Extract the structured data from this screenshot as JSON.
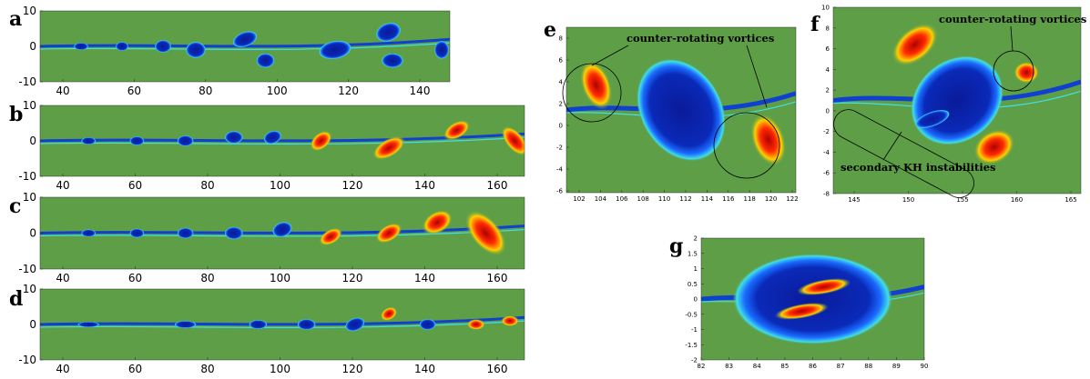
{
  "panels": [
    {
      "label": "a",
      "xticks": [
        40,
        60,
        80,
        100,
        120,
        140
      ],
      "yticks": [
        10,
        0,
        -10
      ]
    },
    {
      "label": "b",
      "xticks": [
        40,
        60,
        80,
        100,
        120,
        140,
        160
      ],
      "yticks": [
        10,
        0,
        -10
      ]
    },
    {
      "label": "c",
      "xticks": [
        40,
        60,
        80,
        100,
        120,
        140,
        160
      ],
      "yticks": [
        10,
        0,
        -10
      ]
    },
    {
      "label": "d",
      "xticks": [
        40,
        60,
        80,
        100,
        120,
        140,
        160
      ],
      "yticks": [
        10,
        0,
        -10
      ]
    },
    {
      "label": "e",
      "xticks": [
        102,
        104,
        106,
        108,
        110,
        112,
        114,
        116,
        118,
        120,
        122
      ],
      "yticks": [
        8,
        6,
        4,
        2,
        0,
        -2,
        -4,
        -6
      ],
      "annotations": [
        "counter-rotating vortices"
      ]
    },
    {
      "label": "f",
      "xticks": [
        145,
        150,
        155,
        160,
        165
      ],
      "yticks": [
        10,
        8,
        6,
        4,
        2,
        0,
        -2,
        -4,
        -6,
        -8
      ],
      "annotations": [
        "counter-rotating vortices",
        "secondary KH instabilities"
      ]
    },
    {
      "label": "g",
      "xticks": [
        82,
        83,
        84,
        85,
        86,
        87,
        88,
        89,
        90
      ],
      "yticks": [
        2,
        1.5,
        1,
        0.5,
        0,
        -0.5,
        -1,
        -1.5,
        -2
      ]
    }
  ]
}
